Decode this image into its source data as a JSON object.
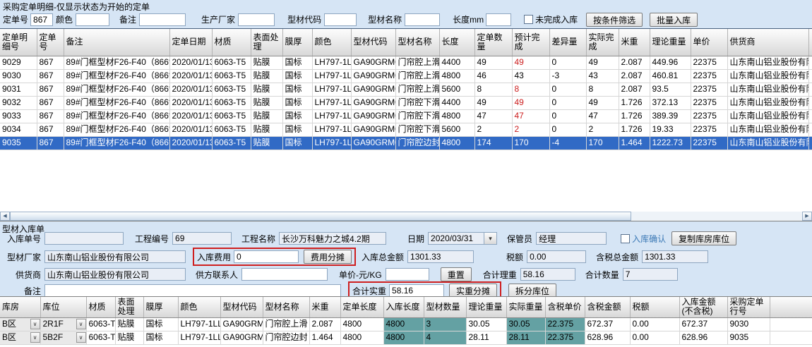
{
  "window": {
    "title": "采购定单明细-仅显示状态为开始的定单"
  },
  "filter": {
    "order_no_label": "定单号",
    "order_no": "867",
    "color_label": "颜色",
    "color": "",
    "remark_label": "备注",
    "remark": "",
    "manufacturer_label": "生产厂家",
    "manufacturer": "",
    "profile_code_label": "型材代码",
    "profile_code": "",
    "profile_name_label": "型材名称",
    "profile_name": "",
    "length_label": "长度mm",
    "length": "",
    "unfinished_label": "未完成入库",
    "filter_button": "按条件筛选",
    "batch_button": "批量入库"
  },
  "order_grid": {
    "columns": [
      "定单明细号",
      "定单号",
      "备注",
      "定单日期",
      "材质",
      "表面处理",
      "膜厚",
      "颜色",
      "型材代码",
      "型材名称",
      "长度",
      "定单数量",
      "预计完成",
      "差异量",
      "实际完成",
      "米重",
      "理论重量",
      "单价",
      "供货商"
    ],
    "expected_col_index": 12,
    "rows": [
      {
        "cells": [
          "9029",
          "867",
          "89#门框型材F26-F40（866*867）",
          "2020/01/13",
          "6063-T5",
          "贴膜",
          "国标",
          "LH797-1LL0",
          "GA90GRM03",
          "门帘腔上滑",
          "4400",
          "49",
          "49",
          "0",
          "49",
          "2.087",
          "449.96",
          "22375",
          "山东南山铝业股份有限公司"
        ],
        "expected_red": true,
        "selected": false
      },
      {
        "cells": [
          "9030",
          "867",
          "89#门框型材F26-F40（866*867）",
          "2020/01/13",
          "6063-T5",
          "贴膜",
          "国标",
          "LH797-1LL0",
          "GA90GRM03",
          "门帘腔上滑",
          "4800",
          "46",
          "43",
          "-3",
          "43",
          "2.087",
          "460.81",
          "22375",
          "山东南山铝业股份有限公司"
        ],
        "expected_red": false,
        "selected": false
      },
      {
        "cells": [
          "9031",
          "867",
          "89#门框型材F26-F40（866*867）",
          "2020/01/13",
          "6063-T5",
          "贴膜",
          "国标",
          "LH797-1LL0",
          "GA90GRM03",
          "门帘腔上滑",
          "5600",
          "8",
          "8",
          "0",
          "8",
          "2.087",
          "93.5",
          "22375",
          "山东南山铝业股份有限公司"
        ],
        "expected_red": true,
        "selected": false
      },
      {
        "cells": [
          "9032",
          "867",
          "89#门框型材F26-F40（866*867）",
          "2020/01/13",
          "6063-T5",
          "贴膜",
          "国标",
          "LH797-1LL0",
          "GA90GRM04",
          "门帘腔下滑",
          "4400",
          "49",
          "49",
          "0",
          "49",
          "1.726",
          "372.13",
          "22375",
          "山东南山铝业股份有限公司"
        ],
        "expected_red": true,
        "selected": false
      },
      {
        "cells": [
          "9033",
          "867",
          "89#门框型材F26-F40（866*867）",
          "2020/01/13",
          "6063-T5",
          "贴膜",
          "国标",
          "LH797-1LL0",
          "GA90GRM04",
          "门帘腔下滑",
          "4800",
          "47",
          "47",
          "0",
          "47",
          "1.726",
          "389.39",
          "22375",
          "山东南山铝业股份有限公司"
        ],
        "expected_red": true,
        "selected": false
      },
      {
        "cells": [
          "9034",
          "867",
          "89#门框型材F26-F40（866*867）",
          "2020/01/13",
          "6063-T5",
          "贴膜",
          "国标",
          "LH797-1LL0",
          "GA90GRM04",
          "门帘腔下滑",
          "5600",
          "2",
          "2",
          "0",
          "2",
          "1.726",
          "19.33",
          "22375",
          "山东南山铝业股份有限公司"
        ],
        "expected_red": true,
        "selected": false
      },
      {
        "cells": [
          "9035",
          "867",
          "89#门框型材F26-F40（866*867）",
          "2020/01/13",
          "6063-T5",
          "贴膜",
          "国标",
          "LH797-1LL0",
          "GA90GRM05",
          "门帘腔边封",
          "4800",
          "174",
          "170",
          "-4",
          "170",
          "1.464",
          "1222.73",
          "22375",
          "山东南山铝业股份有限公司"
        ],
        "expected_red": true,
        "selected": true
      }
    ]
  },
  "inbound": {
    "section_title": "型材入库单",
    "receipt_no_label": "入库单号",
    "receipt_no": "",
    "project_no_label": "工程编号",
    "project_no": "69",
    "project_name_label": "工程名称",
    "project_name": "长沙万科魅力之城4.2期",
    "date_label": "日期",
    "date": "2020/03/31",
    "keeper_label": "保管员",
    "keeper": "经理",
    "confirm_label": "入库确认",
    "copy_location_button": "复制库房库位",
    "factory_label": "型材厂家",
    "factory": "山东南山铝业股份有限公司",
    "fee_label": "入库费用",
    "fee": "0",
    "fee_split_button": "费用分摊",
    "total_amount_label": "入库总金额",
    "total_amount": "1301.33",
    "tax_label": "税额",
    "tax": "0.00",
    "total_with_tax_label": "含税总金额",
    "total_with_tax": "1301.33",
    "supplier_label": "供货商",
    "supplier": "山东南山铝业股份有限公司",
    "contact_label": "供方联系人",
    "contact": "",
    "unit_price_label": "单价-元/KG",
    "unit_price": "",
    "reset_button": "重置",
    "theory_weight_label": "合计理重",
    "theory_weight": "58.16",
    "total_qty_label": "合计数量",
    "total_qty": "7",
    "note_label": "备注",
    "note": "",
    "actual_weight_label": "合计实重",
    "actual_weight": "58.16",
    "weight_split_button": "实重分摊",
    "split_location_button": "拆分库位"
  },
  "inbound_grid": {
    "columns": [
      "库房",
      "库位",
      "材质",
      "表面处理",
      "膜厚",
      "颜色",
      "型材代码",
      "型材名称",
      "米重",
      "定单长度",
      "入库长度",
      "型材数量",
      "理论重量",
      "实际重量",
      "含税单价",
      "含税金额",
      "税额",
      "入库金额(不含税)",
      "采购定单行号"
    ],
    "highlight_col_indices": [
      10,
      11,
      13,
      14
    ],
    "combo_col_indices": [
      0,
      1
    ],
    "rows": [
      {
        "cells": [
          "B区",
          "2R1F",
          "6063-T5",
          "贴膜",
          "国标",
          "LH797-1LL0",
          "GA90GRM03",
          "门帘腔上滑",
          "2.087",
          "4800",
          "4800",
          "3",
          "30.05",
          "30.05",
          "22.375",
          "672.37",
          "0.00",
          "672.37",
          "9030"
        ]
      },
      {
        "cells": [
          "B区",
          "5B2F",
          "6063-T5",
          "贴膜",
          "国标",
          "LH797-1LL0",
          "GA90GRM05",
          "门帘腔边封",
          "1.464",
          "4800",
          "4800",
          "4",
          "28.11",
          "28.11",
          "22.375",
          "628.96",
          "0.00",
          "628.96",
          "9035"
        ]
      }
    ]
  },
  "colors": {
    "selection": "#316ac5",
    "highlight_cell": "#64a1a3",
    "attention_box_red": "#cf1f1f",
    "red_text": "#cc1f1f",
    "background": "#d6e5f5"
  }
}
